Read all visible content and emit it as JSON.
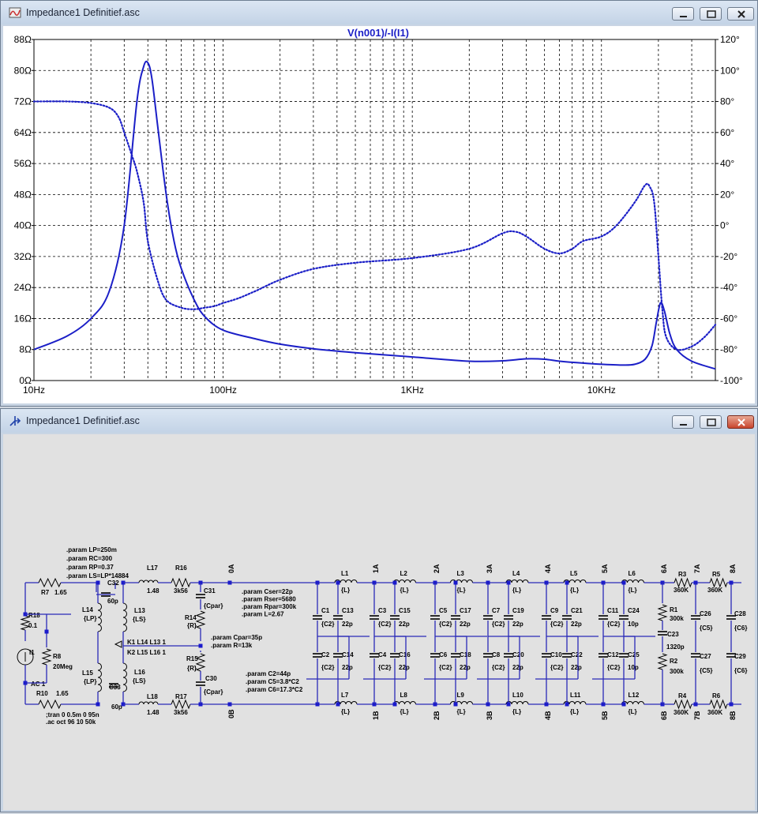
{
  "plot_window": {
    "title": "Impedance1 Definitief.asc",
    "trace_label": "V(n001)/-I(I1)"
  },
  "schematic_window": {
    "title": "Impedance1 Definitief.asc"
  },
  "chart_data": {
    "type": "line",
    "title": "V(n001)/-I(I1)",
    "x_scale": "log",
    "xlim": [
      10,
      40000
    ],
    "x_ticks": [
      "10Hz",
      "100Hz",
      "1KHz",
      "10KHz"
    ],
    "y_left_ticks": [
      "88Ω",
      "80Ω",
      "72Ω",
      "64Ω",
      "56Ω",
      "48Ω",
      "40Ω",
      "32Ω",
      "24Ω",
      "16Ω",
      "8Ω",
      "0Ω"
    ],
    "y_right_ticks": [
      "120°",
      "100°",
      "80°",
      "60°",
      "40°",
      "20°",
      "0°",
      "-20°",
      "-40°",
      "-60°",
      "-80°",
      "-100°"
    ],
    "ylim_left": [
      0,
      88
    ],
    "ylim_right": [
      -100,
      120
    ],
    "grid": true,
    "series": [
      {
        "style": "solid",
        "axis": "left",
        "x": [
          10,
          15,
          20,
          25,
          30,
          35,
          38,
          40,
          42,
          45,
          50,
          55,
          60,
          70,
          80,
          100,
          150,
          200,
          300,
          500,
          1000,
          2000,
          3000,
          4000,
          5000,
          6000,
          8000,
          10000,
          13000,
          15000,
          17000,
          18500,
          19500,
          20500,
          21500,
          23000,
          25000,
          30000,
          40000
        ],
        "y": [
          8,
          11.5,
          16,
          23,
          40,
          72,
          81,
          82,
          78,
          66,
          48,
          36,
          29,
          21,
          16.5,
          13,
          10.7,
          9.4,
          8.2,
          7.2,
          6.1,
          5,
          5.1,
          5.6,
          5.5,
          5,
          4.5,
          4.2,
          4,
          4.2,
          5.5,
          9,
          15,
          20,
          18,
          12,
          8,
          5,
          3
        ]
      },
      {
        "style": "dotted",
        "axis": "right",
        "x": [
          10,
          15,
          20,
          25,
          28,
          30,
          33,
          35,
          38,
          40,
          45,
          50,
          60,
          70,
          80,
          90,
          100,
          120,
          150,
          200,
          300,
          500,
          1000,
          2000,
          3000,
          3500,
          4000,
          5000,
          6000,
          7000,
          8000,
          10000,
          12000,
          15000,
          17000,
          18000,
          19000,
          20000,
          21000,
          22000,
          25000,
          30000,
          35000,
          40000
        ],
        "y": [
          80,
          80,
          79,
          76,
          70,
          60,
          45,
          35,
          15,
          -10,
          -35,
          -48,
          -53,
          -54,
          -53,
          -52,
          -50,
          -47,
          -42,
          -35,
          -28,
          -24,
          -21,
          -15,
          -5,
          -4,
          -7,
          -15,
          -18,
          -15,
          -10,
          -7,
          0,
          15,
          26,
          25,
          15,
          -20,
          -55,
          -72,
          -80,
          -78,
          -72,
          -64
        ]
      }
    ]
  },
  "schematic": {
    "params_block1": [
      ".param LP=250m",
      ".param RC=300",
      ".param RP=0.37",
      ".param LS=LP*14884"
    ],
    "params_block2": [
      ".param Cser=22p",
      ".param Rser=5680",
      ".param Rpar=300k",
      ".param L=2.67"
    ],
    "params_block3": [
      ".param Cpar=35p",
      ".param R=13k"
    ],
    "params_block4": [
      ".param C2=44p",
      ".param C5=3.8*C2",
      ".param C6=17.3*C2"
    ],
    "sim_directives": [
      ";tran 0 0.5m 0 95n",
      ".ac oct 96 10 50k"
    ],
    "coupling": [
      "K1 L14 L13 1",
      "K2 L15 L16 1"
    ],
    "nodes_top": [
      "0A",
      "1A",
      "2A",
      "3A",
      "4A",
      "5A",
      "6A",
      "7A",
      "8A"
    ],
    "nodes_bottom": [
      "0B",
      "1B",
      "2B",
      "3B",
      "4B",
      "5B",
      "6B",
      "7B",
      "8B"
    ],
    "source": {
      "name": "I1",
      "value": "AC 1"
    },
    "left_parts": [
      {
        "name": "R7",
        "value": "1.65"
      },
      {
        "name": "R10",
        "value": "1.65"
      },
      {
        "name": "R18",
        "value": "0.1"
      },
      {
        "name": "R8",
        "value": "20Meg"
      },
      {
        "name": "C32",
        "value": "60p"
      },
      {
        "name": "C33",
        "value": "60p"
      },
      {
        "name": "L14",
        "value": "{LP}"
      },
      {
        "name": "L15",
        "value": "{LP}"
      },
      {
        "name": "L13",
        "value": "{LS}"
      },
      {
        "name": "L16",
        "value": "{LS}"
      },
      {
        "name": "L17",
        "value": "1.48"
      },
      {
        "name": "L18",
        "value": "1.48"
      },
      {
        "name": "R16",
        "value": "3k56"
      },
      {
        "name": "R17",
        "value": "3k56"
      },
      {
        "name": "C31",
        "value": "{Cpar}"
      },
      {
        "name": "C30",
        "value": "{Cpar}"
      },
      {
        "name": "R14",
        "value": "{R}"
      },
      {
        "name": "R15",
        "value": "{R}"
      }
    ],
    "top_inductors": [
      {
        "name": "L1",
        "value": "{L}"
      },
      {
        "name": "L2",
        "value": "{L}"
      },
      {
        "name": "L3",
        "value": "{L}"
      },
      {
        "name": "L4",
        "value": "{L}"
      },
      {
        "name": "L5",
        "value": "{L}"
      },
      {
        "name": "L6",
        "value": "{L}"
      }
    ],
    "bottom_inductors": [
      {
        "name": "L7",
        "value": "{L}"
      },
      {
        "name": "L8",
        "value": "{L}"
      },
      {
        "name": "L9",
        "value": "{L}"
      },
      {
        "name": "L10",
        "value": "{L}"
      },
      {
        "name": "L11",
        "value": "{L}"
      },
      {
        "name": "L12",
        "value": "{L}"
      }
    ],
    "cap_sections": [
      {
        "a": "C1",
        "av": "{C2}",
        "b": "C13",
        "bv": "22p",
        "c": "C2",
        "cv": "{C2}",
        "d": "C14",
        "dv": "22p"
      },
      {
        "a": "C3",
        "av": "{C2}",
        "b": "C15",
        "bv": "22p",
        "c": "C4",
        "cv": "{C2}",
        "d": "C16",
        "dv": "22p"
      },
      {
        "a": "C5",
        "av": "{C2}",
        "b": "C17",
        "bv": "22p",
        "c": "C6",
        "cv": "{C2}",
        "d": "C18",
        "dv": "22p"
      },
      {
        "a": "C7",
        "av": "{C2}",
        "b": "C19",
        "bv": "22p",
        "c": "C8",
        "cv": "{C2}",
        "d": "C20",
        "dv": "22p"
      },
      {
        "a": "C9",
        "av": "{C2}",
        "b": "C21",
        "bv": "22p",
        "c": "C10",
        "cv": "{C2}",
        "d": "C22",
        "dv": "22p"
      },
      {
        "a": "C11",
        "av": "{C2}",
        "b": "C24",
        "bv": "10p",
        "c": "C12",
        "cv": "{C2}",
        "d": "C25",
        "dv": "10p"
      }
    ],
    "right_parts": [
      {
        "name": "R3",
        "value": "360K"
      },
      {
        "name": "R5",
        "value": "360K"
      },
      {
        "name": "R4",
        "value": "360K"
      },
      {
        "name": "R6",
        "value": "360K"
      },
      {
        "name": "R1",
        "value": "300k"
      },
      {
        "name": "R2",
        "value": "300k"
      },
      {
        "name": "C23",
        "value": "1320p"
      },
      {
        "name": "C26",
        "value": "{C5}"
      },
      {
        "name": "C27",
        "value": "{C5}"
      },
      {
        "name": "C28",
        "value": "{C6}"
      },
      {
        "name": "C29",
        "value": "{C6}"
      }
    ]
  },
  "colors": {
    "trace": "#1b1fc7",
    "wire": "#2a2ab8",
    "node": "#1a1acc",
    "grid": "#000000"
  }
}
